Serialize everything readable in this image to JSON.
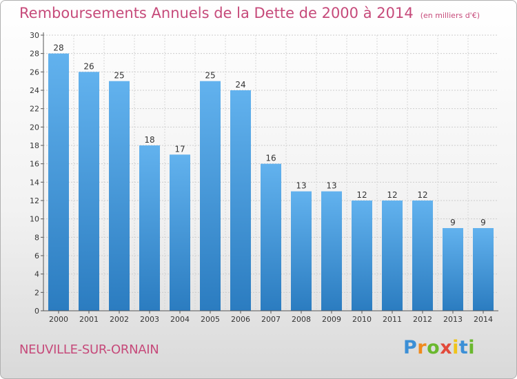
{
  "chart_data": {
    "type": "bar",
    "title": "Remboursements Annuels de la Dette de 2000 à 2014",
    "unit_note": "(en milliers d'€)",
    "categories": [
      "2000",
      "2001",
      "2002",
      "2003",
      "2004",
      "2005",
      "2006",
      "2007",
      "2008",
      "2009",
      "2010",
      "2011",
      "2012",
      "2013",
      "2014"
    ],
    "values": [
      28,
      26,
      25,
      18,
      17,
      25,
      24,
      16,
      13,
      13,
      12,
      12,
      12,
      9,
      9
    ],
    "ylim": [
      0,
      30
    ],
    "yticks": [
      0,
      2,
      4,
      6,
      8,
      10,
      12,
      14,
      16,
      18,
      20,
      22,
      24,
      26,
      28,
      30
    ],
    "xlabel": "",
    "ylabel": "",
    "grid": true
  },
  "footer": {
    "city": "NEUVILLE-SUR-ORNAIN",
    "logo_letters": [
      "P",
      "r",
      "o",
      "x",
      "i",
      "t",
      "i"
    ],
    "logo_colors": [
      "#3b8fd6",
      "#f08a1c",
      "#6ab82e",
      "#e24a3b",
      "#f0c419",
      "#3b8fd6",
      "#6ab82e"
    ]
  },
  "colors": {
    "title": "#c64a7a",
    "bar_light": "#62b2ee",
    "bar_dark": "#2b7cc0",
    "axis_text": "#333333"
  }
}
